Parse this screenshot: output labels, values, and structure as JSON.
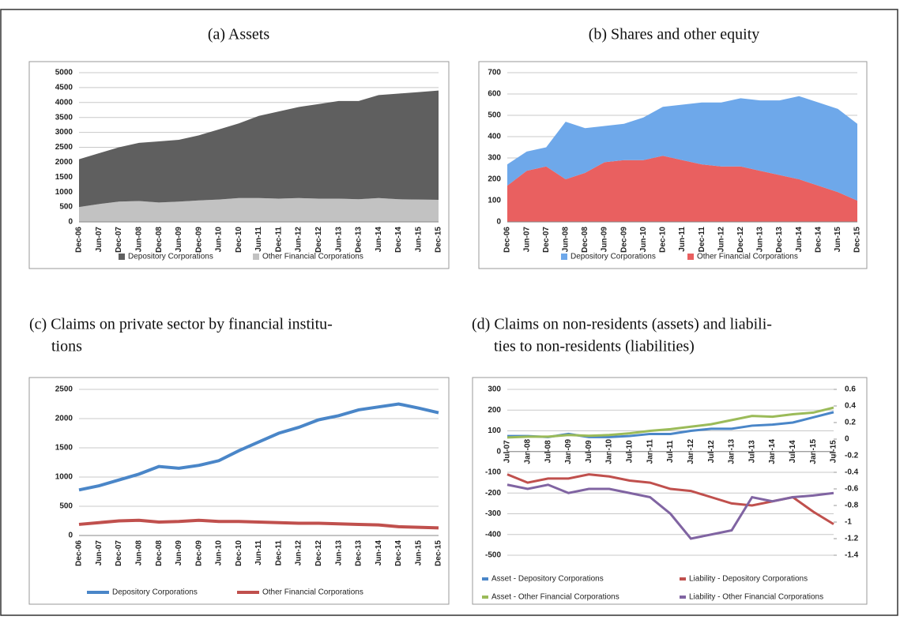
{
  "chart_data": [
    {
      "type": "area",
      "stacked": true,
      "title": "(a) Assets",
      "categories": [
        "Dec-06",
        "Jun-07",
        "Dec-07",
        "Jun-08",
        "Dec-08",
        "Jun-09",
        "Dec-09",
        "Jun-10",
        "Dec-10",
        "Jun-11",
        "Dec-11",
        "Jun-12",
        "Dec-12",
        "Jun-13",
        "Dec-13",
        "Jun-14",
        "Dec-14",
        "Jun-15",
        "Dec-15"
      ],
      "series": [
        {
          "name": "Depository Corporations",
          "color": "#5f5f5f",
          "values": [
            1600,
            1700,
            1820,
            1950,
            2050,
            2070,
            2180,
            2350,
            2500,
            2750,
            2920,
            3050,
            3170,
            3270,
            3290,
            3450,
            3540,
            3600,
            3660
          ]
        },
        {
          "name": "Other Financial Corporations",
          "color": "#c2c2c2",
          "values": [
            500,
            600,
            680,
            700,
            650,
            680,
            720,
            750,
            800,
            800,
            780,
            800,
            780,
            780,
            760,
            800,
            760,
            750,
            740
          ]
        }
      ],
      "ylim": [
        0,
        5000
      ],
      "yticks": [
        0,
        500,
        1000,
        1500,
        2000,
        2500,
        3000,
        3500,
        4000,
        4500,
        5000
      ],
      "grid": true
    },
    {
      "type": "area",
      "stacked": true,
      "title": "(b) Shares and other equity",
      "categories": [
        "Dec-06",
        "Jun-07",
        "Dec-07",
        "Jun-08",
        "Dec-08",
        "Jun-09",
        "Dec-09",
        "Jun-10",
        "Dec-10",
        "Jun-11",
        "Dec-11",
        "Jun-12",
        "Dec-12",
        "Jun-13",
        "Dec-13",
        "Jun-14",
        "Dec-14",
        "Jun-15",
        "Dec-15"
      ],
      "series": [
        {
          "name": "Depository Corporations",
          "color": "#6ea8ea",
          "values": [
            100,
            90,
            90,
            270,
            210,
            170,
            170,
            200,
            230,
            260,
            290,
            300,
            320,
            330,
            350,
            390,
            390,
            390,
            360
          ]
        },
        {
          "name": "Other Financial Corporations",
          "color": "#e96060",
          "values": [
            170,
            240,
            260,
            200,
            230,
            280,
            290,
            290,
            310,
            290,
            270,
            260,
            260,
            240,
            220,
            200,
            170,
            140,
            100
          ]
        }
      ],
      "ylim": [
        0,
        700
      ],
      "yticks": [
        0,
        100,
        200,
        300,
        400,
        500,
        600,
        700
      ],
      "grid": true
    },
    {
      "type": "line",
      "title": [
        "(c) Claims on private sector by financial institu-",
        "tions"
      ],
      "categories": [
        "Dec-06",
        "Jun-07",
        "Dec-07",
        "Jun-08",
        "Dec-08",
        "Jun-09",
        "Dec-09",
        "Jun-10",
        "Dec-10",
        "Jun-11",
        "Dec-11",
        "Jun-12",
        "Dec-12",
        "Jun-13",
        "Dec-13",
        "Jun-14",
        "Dec-14",
        "Jun-15",
        "Dec-15"
      ],
      "series": [
        {
          "name": "Depository Corporations",
          "color": "#4a86c8",
          "values": [
            780,
            850,
            950,
            1050,
            1180,
            1150,
            1200,
            1280,
            1450,
            1600,
            1750,
            1850,
            1980,
            2050,
            2150,
            2200,
            2250,
            2180,
            2100
          ]
        },
        {
          "name": "Other Financial  Corporations",
          "color": "#c0504d",
          "values": [
            190,
            220,
            250,
            260,
            230,
            240,
            260,
            240,
            240,
            230,
            220,
            210,
            210,
            200,
            190,
            180,
            150,
            140,
            130
          ]
        }
      ],
      "ylim": [
        0,
        2500
      ],
      "yticks": [
        0,
        500,
        1000,
        1500,
        2000,
        2500
      ],
      "grid": true
    },
    {
      "type": "line",
      "title": [
        "(d) Claims on non-residents (assets) and liabili-",
        "ties to non-residents (liabilities)"
      ],
      "categories": [
        "Jul-07",
        "Jan-08",
        "Jul-08",
        "Jan-09",
        "Jul-09",
        "Jan-10",
        "Jul-10",
        "Jan-11",
        "Jul-11",
        "Jan-12",
        "Jul-12",
        "Jan-13",
        "Jul-13",
        "Jan-14",
        "Jul-14",
        "Jan-15",
        "Jul-15"
      ],
      "series": [
        {
          "name": "Asset - Depository Corporations",
          "color": "#4a86c8",
          "values": [
            75,
            75,
            70,
            85,
            70,
            70,
            75,
            85,
            85,
            100,
            110,
            110,
            125,
            130,
            140,
            165,
            190
          ]
        },
        {
          "name": "Liability - Depository Corporations",
          "color": "#c0504d",
          "values": [
            -110,
            -150,
            -130,
            -130,
            -110,
            -120,
            -140,
            -150,
            -180,
            -190,
            -220,
            -250,
            -260,
            -240,
            -220,
            -290,
            -350
          ]
        },
        {
          "name": "Asset - Other Financial Corporations",
          "color": "#9bbb59",
          "axis": "y2",
          "values": [
            0.02,
            0.03,
            0.03,
            0.05,
            0.04,
            0.05,
            0.07,
            0.1,
            0.12,
            0.15,
            0.18,
            0.23,
            0.28,
            0.27,
            0.3,
            0.32,
            0.38
          ]
        },
        {
          "name": "Liability - Other Financial Corporations",
          "color": "#8064a2",
          "axis": "y2",
          "values": [
            -0.55,
            -0.6,
            -0.55,
            -0.65,
            -0.6,
            -0.6,
            -0.65,
            -0.7,
            -0.9,
            -1.2,
            -1.15,
            -1.1,
            -0.7,
            -0.75,
            -0.7,
            -0.68,
            -0.65
          ]
        }
      ],
      "ylim": [
        -500,
        300
      ],
      "yticks": [
        -500,
        -400,
        -300,
        -200,
        -100,
        0,
        100,
        200,
        300
      ],
      "y2lim": [
        -1.4,
        0.6
      ],
      "y2ticks": [
        -1.4,
        -1.2,
        -1,
        -0.8,
        -0.6,
        -0.4,
        -0.2,
        0,
        0.2,
        0.4,
        0.6
      ],
      "grid": true
    }
  ]
}
